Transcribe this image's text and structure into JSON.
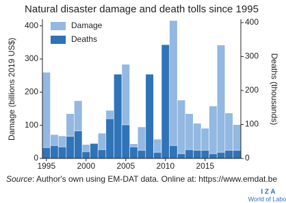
{
  "chart_data": {
    "type": "bar",
    "title": "Natural disaster damage and death tolls since 1995",
    "ylabel": "Damage (billions 2019 US$)",
    "y2label": "Deaths (thousands)",
    "x": [
      1995,
      1996,
      1997,
      1998,
      1999,
      2000,
      2001,
      2002,
      2003,
      2004,
      2005,
      2006,
      2007,
      2008,
      2009,
      2010,
      2011,
      2012,
      2013,
      2014,
      2015,
      2016,
      2017,
      2018,
      2019
    ],
    "series": [
      {
        "name": "Damage",
        "color": "#93b8e1",
        "values": [
          260,
          72,
          68,
          135,
          174,
          42,
          45,
          76,
          145,
          150,
          284,
          44,
          95,
          120,
          58,
          200,
          416,
          176,
          135,
          106,
          91,
          158,
          342,
          137,
          102
        ]
      },
      {
        "name": "Deaths",
        "color": "#2f73b8",
        "axis": "y2",
        "values": [
          32,
          38,
          34,
          65,
          81,
          20,
          44,
          26,
          117,
          248,
          99,
          34,
          24,
          248,
          18,
          335,
          38,
          14,
          26,
          24,
          24,
          14,
          18,
          24,
          24
        ]
      }
    ],
    "xlim": [
      1994.5,
      2019.5
    ],
    "xticks": [
      1995,
      2000,
      2005,
      2010,
      2015
    ],
    "ylim": [
      0,
      420
    ],
    "yticks": [
      0,
      100,
      200,
      300,
      400
    ],
    "y2lim": [
      0,
      410
    ],
    "y2ticks": [
      0,
      100,
      200,
      300,
      400
    ],
    "legend": "top-left",
    "source": {
      "label": "Source",
      "text": ": Author's own using EM-DAT data. Online at: https://www.emdat.be"
    }
  },
  "logo": {
    "mark": "I Z A",
    "name": "World of Labor"
  }
}
